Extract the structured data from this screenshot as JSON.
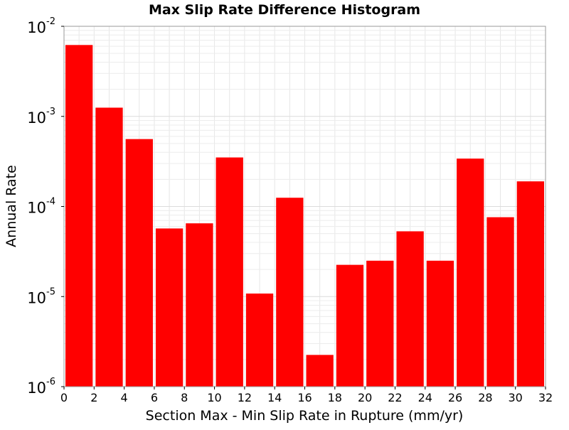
{
  "chart_data": {
    "type": "bar",
    "title": "Max Slip Rate Difference Histogram",
    "xlabel": "Section Max - Min Slip Rate in Rupture (mm/yr)",
    "ylabel": "Annual Rate",
    "xlim": [
      0,
      32
    ],
    "ylim": [
      1e-06,
      0.01
    ],
    "yscale": "log",
    "grid": true,
    "bar_color": "#ff0000",
    "bin_width": 2,
    "bins": [
      {
        "x0": 0,
        "x1": 2,
        "value": 0.0062
      },
      {
        "x0": 2,
        "x1": 4,
        "value": 0.00125
      },
      {
        "x0": 4,
        "x1": 6,
        "value": 0.00056
      },
      {
        "x0": 6,
        "x1": 8,
        "value": 5.7e-05
      },
      {
        "x0": 8,
        "x1": 10,
        "value": 6.5e-05
      },
      {
        "x0": 10,
        "x1": 12,
        "value": 0.00035
      },
      {
        "x0": 12,
        "x1": 14,
        "value": 1.08e-05
      },
      {
        "x0": 14,
        "x1": 16,
        "value": 0.000125
      },
      {
        "x0": 16,
        "x1": 18,
        "value": 2.25e-06
      },
      {
        "x0": 18,
        "x1": 20,
        "value": 2.25e-05
      },
      {
        "x0": 20,
        "x1": 22,
        "value": 2.5e-05
      },
      {
        "x0": 22,
        "x1": 24,
        "value": 5.3e-05
      },
      {
        "x0": 24,
        "x1": 26,
        "value": 2.5e-05
      },
      {
        "x0": 26,
        "x1": 28,
        "value": 0.00034
      },
      {
        "x0": 28,
        "x1": 30,
        "value": 7.6e-05
      },
      {
        "x0": 30,
        "x1": 32,
        "value": 0.00019
      }
    ],
    "x_ticks": [
      "0",
      "2",
      "4",
      "6",
      "8",
      "10",
      "12",
      "14",
      "16",
      "18",
      "20",
      "22",
      "24",
      "26",
      "28",
      "30",
      "32"
    ],
    "y_ticks": [
      {
        "base": "10",
        "exp": "-6"
      },
      {
        "base": "10",
        "exp": "-5"
      },
      {
        "base": "10",
        "exp": "-4"
      },
      {
        "base": "10",
        "exp": "-3"
      },
      {
        "base": "10",
        "exp": "-2"
      }
    ]
  }
}
